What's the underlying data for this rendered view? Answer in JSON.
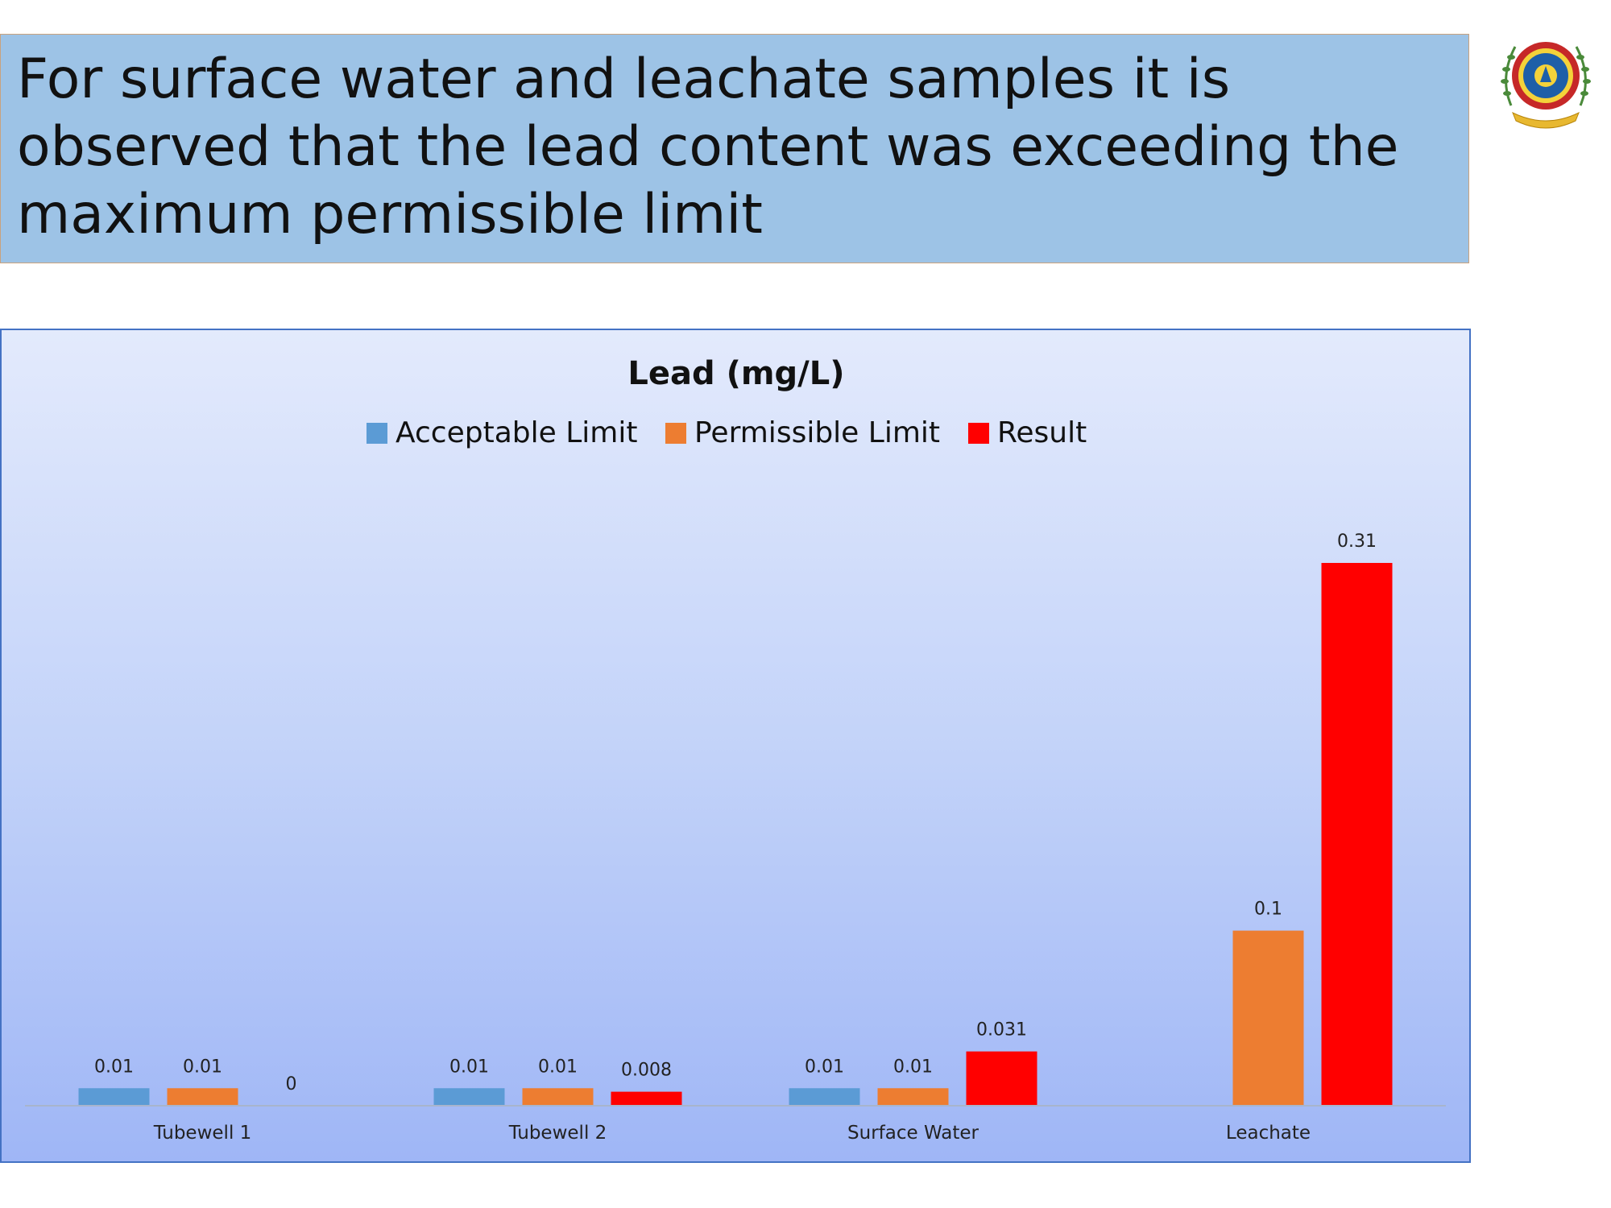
{
  "slide": {
    "headline": "For surface water and leachate samples it is observed that the lead content was exceeding the maximum permissible limit"
  },
  "logo": {
    "icon": "institution-seal-icon"
  },
  "colors": {
    "headline_bg": "#9dc3e6",
    "acceptable": "#5b9bd5",
    "permissible": "#ed7d31",
    "result": "#ff0000",
    "panel_border": "#4472c4"
  },
  "chart_data": {
    "type": "bar",
    "title": "Lead (mg/L)",
    "categories": [
      "Tubewell 1",
      "Tubewell 2",
      "Surface Water",
      "Leachate"
    ],
    "series": [
      {
        "name": "Acceptable Limit",
        "values": [
          0.01,
          0.01,
          0.01,
          null
        ],
        "labels": [
          "0.01",
          "0.01",
          "0.01",
          ""
        ]
      },
      {
        "name": "Permissible Limit",
        "values": [
          0.01,
          0.01,
          0.01,
          0.1
        ],
        "labels": [
          "0.01",
          "0.01",
          "0.01",
          "0.1"
        ]
      },
      {
        "name": "Result",
        "values": [
          0,
          0.008,
          0.031,
          0.31
        ],
        "labels": [
          "0",
          "0.008",
          "0.031",
          "0.31"
        ]
      }
    ],
    "ylim": [
      0,
      0.32
    ],
    "grid": false,
    "legend": "top-center",
    "xlabel": "",
    "ylabel": ""
  }
}
